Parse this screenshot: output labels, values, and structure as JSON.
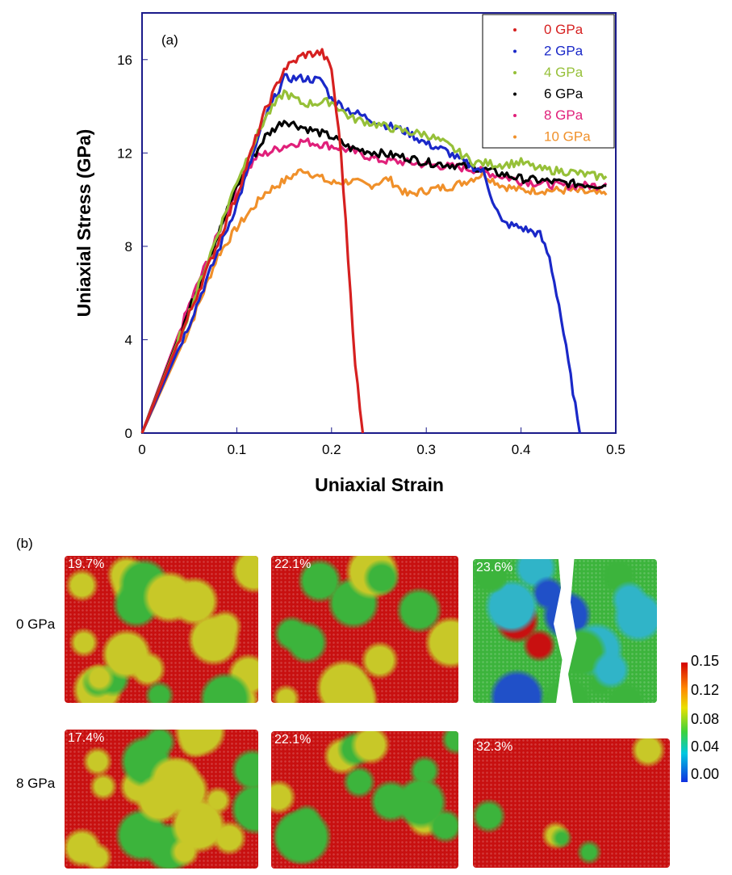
{
  "chart_data": {
    "type": "line",
    "panel_label": "(a)",
    "xlabel": "Uniaxial Strain",
    "ylabel": "Uniaxial Stress (GPa)",
    "xlim": [
      0,
      0.5
    ],
    "ylim": [
      0,
      18
    ],
    "xticks": [
      "0",
      "0.1",
      "0.2",
      "0.3",
      "0.4",
      "0.5"
    ],
    "yticks": [
      "0",
      "4",
      "8",
      "12",
      "16"
    ],
    "grid": false,
    "legend_position": "top-right",
    "series": [
      {
        "name": "0 GPa",
        "color": "#d62020",
        "x": [
          0,
          0.05,
          0.1,
          0.13,
          0.15,
          0.17,
          0.19,
          0.2,
          0.21,
          0.22,
          0.225,
          0.23,
          0.233
        ],
        "y": [
          0,
          5.1,
          10.2,
          13.8,
          15.6,
          16.2,
          16.3,
          15.6,
          12,
          6,
          3,
          1,
          0
        ]
      },
      {
        "name": "2 GPa",
        "color": "#1a28c8",
        "x": [
          0,
          0.05,
          0.1,
          0.13,
          0.15,
          0.17,
          0.19,
          0.2,
          0.22,
          0.25,
          0.28,
          0.3,
          0.32,
          0.34,
          0.36,
          0.37,
          0.38,
          0.4,
          0.42,
          0.43,
          0.44,
          0.45,
          0.462
        ],
        "y": [
          0,
          4.7,
          9.8,
          13.5,
          15.2,
          15.2,
          15.1,
          14.3,
          13.8,
          13.3,
          12.9,
          12.4,
          12.1,
          11.6,
          11.2,
          10,
          9,
          8.8,
          8.5,
          7.5,
          5.5,
          3,
          0
        ]
      },
      {
        "name": "4 GPa",
        "color": "#96c038",
        "x": [
          0,
          0.05,
          0.1,
          0.13,
          0.15,
          0.17,
          0.2,
          0.22,
          0.25,
          0.28,
          0.3,
          0.32,
          0.35,
          0.38,
          0.4,
          0.42,
          0.45,
          0.48,
          0.49
        ],
        "y": [
          0,
          5.2,
          10.8,
          13.5,
          14.6,
          14.1,
          14.2,
          13.5,
          13.2,
          12.9,
          12.8,
          12.4,
          11.6,
          11.5,
          11.6,
          11.3,
          11.2,
          11,
          11
        ]
      },
      {
        "name": "6 GPa",
        "color": "#000000",
        "x": [
          0,
          0.05,
          0.1,
          0.13,
          0.15,
          0.17,
          0.2,
          0.22,
          0.25,
          0.28,
          0.3,
          0.35,
          0.4,
          0.45,
          0.49
        ],
        "y": [
          0,
          5.3,
          10.6,
          12.7,
          13.4,
          13.1,
          12.7,
          12.2,
          12,
          11.8,
          11.6,
          11.4,
          10.9,
          10.7,
          10.6
        ]
      },
      {
        "name": "8 GPa",
        "color": "#e0207a",
        "x": [
          0,
          0.05,
          0.1,
          0.12,
          0.15,
          0.17,
          0.2,
          0.22,
          0.25,
          0.28,
          0.3,
          0.33,
          0.35,
          0.38,
          0.4,
          0.44,
          0.48,
          0.49
        ],
        "y": [
          0,
          5.5,
          10.5,
          11.8,
          12.3,
          12.5,
          12.3,
          12.1,
          11.7,
          11.6,
          11.5,
          11.4,
          11.3,
          11,
          10.8,
          10.6,
          10.6,
          10.7
        ]
      },
      {
        "name": "10 GPa",
        "color": "#f0902a",
        "x": [
          0,
          0.05,
          0.08,
          0.1,
          0.13,
          0.15,
          0.17,
          0.2,
          0.22,
          0.24,
          0.26,
          0.28,
          0.3,
          0.33,
          0.36,
          0.38,
          0.4,
          0.45,
          0.49
        ],
        "y": [
          0,
          4.5,
          7.6,
          8.8,
          10.3,
          10.8,
          11.3,
          10.7,
          10.8,
          10.6,
          10.9,
          10.2,
          10.4,
          10.6,
          11.1,
          10.6,
          10.4,
          10.4,
          10.2
        ]
      }
    ]
  },
  "panel_b": {
    "label": "(b)",
    "rows": [
      {
        "label": "0 GPa",
        "snapshots": [
          "19.7%",
          "22.1%",
          "23.6%"
        ]
      },
      {
        "label": "8 GPa",
        "snapshots": [
          "17.4%",
          "22.1%",
          "32.3%"
        ]
      }
    ],
    "colorbar": {
      "ticks": [
        "0.15",
        "0.12",
        "0.08",
        "0.04",
        "0.00"
      ]
    }
  }
}
